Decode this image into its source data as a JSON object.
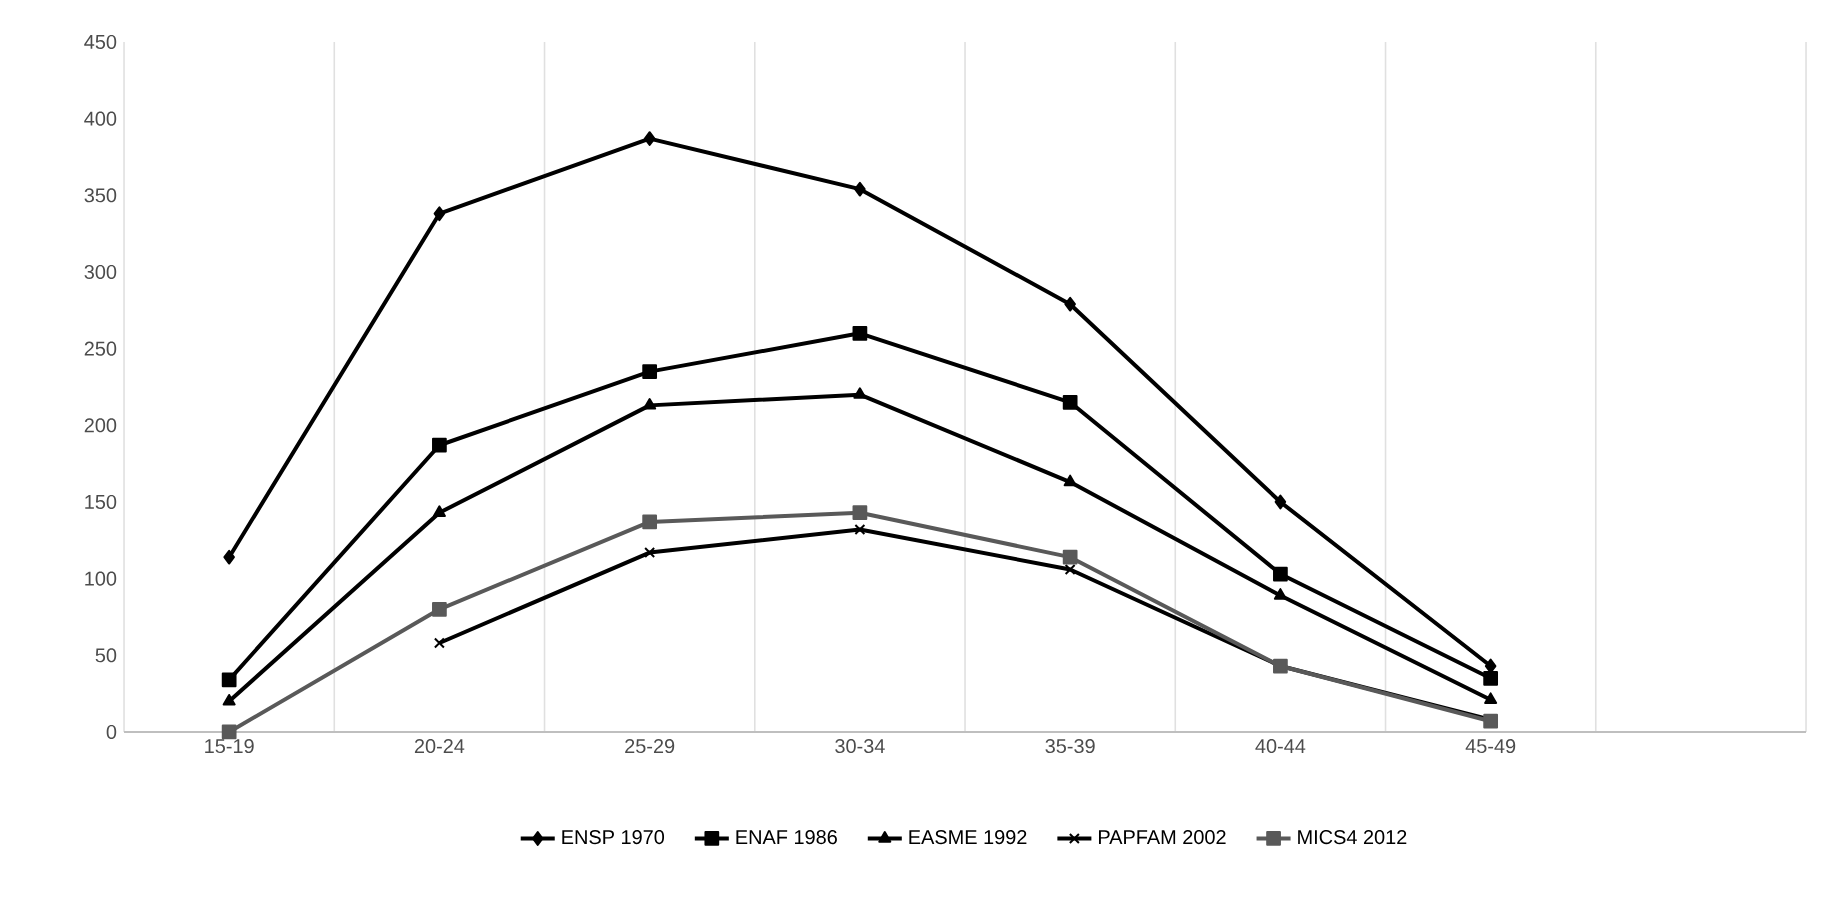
{
  "chart_data": {
    "type": "line",
    "categories": [
      "15-19",
      "20-24",
      "25-29",
      "30-34",
      "35-39",
      "40-44",
      "45-49",
      null
    ],
    "series": [
      {
        "name": "ENSP 1970",
        "color": "#000000",
        "marker": "diamond",
        "values": [
          114,
          338,
          387,
          354,
          279,
          150,
          43,
          null
        ]
      },
      {
        "name": "ENAF 1986",
        "color": "#000000",
        "marker": "square",
        "values": [
          34,
          187,
          235,
          260,
          215,
          103,
          35,
          null
        ]
      },
      {
        "name": "EASME 1992",
        "color": "#000000",
        "marker": "triangle",
        "values": [
          20,
          143,
          213,
          220,
          163,
          89,
          21,
          null
        ]
      },
      {
        "name": "PAPFAM 2002",
        "color": "#000000",
        "marker": "cross",
        "values": [
          null,
          58,
          117,
          132,
          106,
          43,
          8,
          null
        ]
      },
      {
        "name": "MICS4 2012",
        "color": "#595959",
        "marker": "square",
        "values": [
          0,
          80,
          137,
          143,
          114,
          43,
          7,
          null
        ]
      }
    ],
    "ylim": [
      0,
      450
    ],
    "yticks": [
      0,
      50,
      100,
      150,
      200,
      250,
      300,
      350,
      400,
      450
    ],
    "grid": "x",
    "legend": "bottom",
    "line_style": "solid"
  }
}
